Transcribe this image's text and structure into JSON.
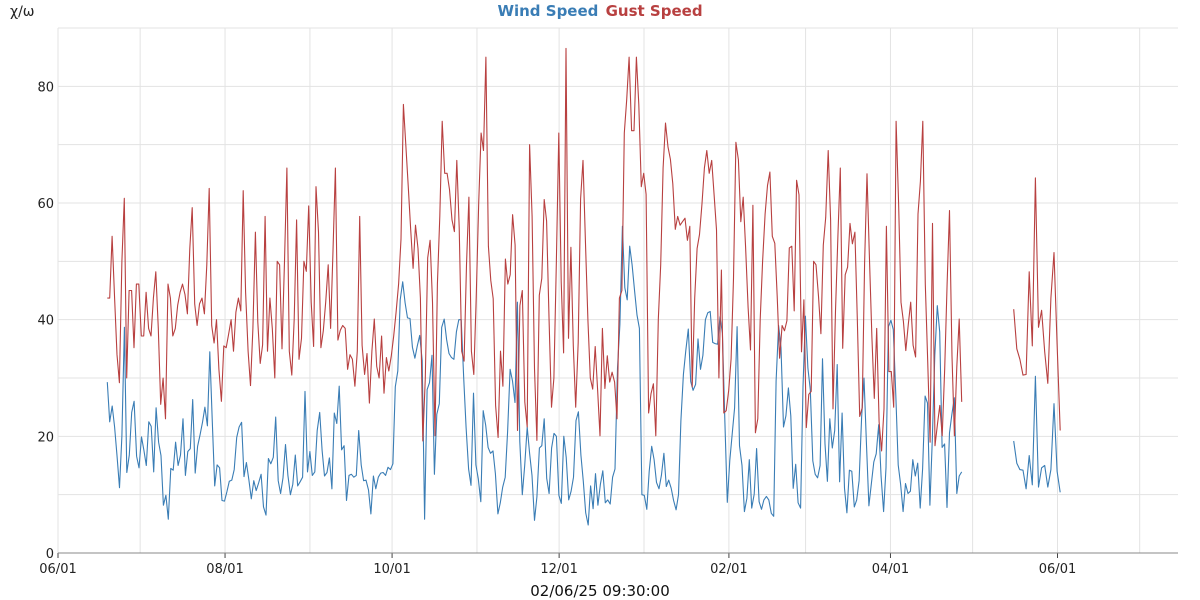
{
  "chart_data": {
    "type": "line",
    "title": "",
    "ylabel": "χ/ω",
    "xlabel": "02/06/25 09:30:00",
    "ylim": [
      0,
      90
    ],
    "y_ticks": [
      0,
      20,
      40,
      60,
      80
    ],
    "x_ticks": [
      "06/01",
      "08/01",
      "10/01",
      "12/01",
      "02/01",
      "04/01",
      "06/01"
    ],
    "x_tick_dates": [
      "2024-06-01",
      "2024-08-01",
      "2024-10-01",
      "2024-12-01",
      "2025-02-01",
      "2025-04-01",
      "2025-06-01"
    ],
    "x_range": [
      "2024-06-01",
      "2025-07-15"
    ],
    "grid": true,
    "legend_position": "top-center",
    "series": [
      {
        "name": "Wind Speed",
        "color": "#3a7db5",
        "segments": [
          {
            "start": "2024-06-19",
            "end": "2025-04-27",
            "values": [
              29.3,
              22.5,
              25.2,
              21.6,
              16.5,
              11.2,
              20.1,
              38.7,
              13.8,
              16.8,
              24.1,
              26.0,
              16.6,
              14.6,
              19.9,
              17.6,
              15.0,
              22.5,
              21.7,
              13.9,
              24.9,
              19.0,
              16.7,
              8.2,
              9.9,
              5.8,
              14.5,
              14.2,
              19.0,
              15.0,
              16.8,
              23.0,
              13.3,
              17.4,
              17.9,
              26.3,
              13.7,
              18.3,
              20.3,
              22.4,
              25.0,
              21.8,
              34.5,
              22.5,
              11.5,
              15.1,
              14.6,
              9.0,
              8.9,
              10.5,
              12.3,
              12.5,
              14.3,
              19.8,
              21.6,
              22.4,
              13.1,
              15.5,
              12.5,
              9.3,
              12.4,
              10.7,
              12.0,
              13.5,
              7.9,
              6.5,
              16.2,
              15.3,
              16.4,
              23.3,
              12.4,
              10.2,
              12.9,
              18.6,
              13.3,
              10.0,
              11.8,
              16.8,
              11.5,
              12.2,
              13.0,
              27.7,
              13.9,
              17.4,
              13.3,
              13.9,
              21.0,
              24.1,
              17.6,
              13.2,
              13.8,
              16.3,
              11.0,
              24.0,
              22.2,
              28.6,
              17.7,
              18.4,
              9.0,
              13.3,
              13.5,
              13.0,
              13.3,
              21.0,
              15.1,
              12.4,
              12.5,
              10.8,
              6.7,
              13.2,
              11.0,
              13.0,
              13.7,
              13.8,
              13.3,
              14.7,
              14.3,
              15.3,
              28.5,
              31.2,
              43.4,
              46.5,
              42.9,
              40.3,
              40.2,
              35.3,
              33.4,
              35.5,
              37.3,
              33.0,
              5.8,
              28.0,
              29.2,
              33.9,
              13.5,
              23.8,
              25.6,
              38.7,
              40.1,
              36.6,
              34.2,
              33.5,
              33.2,
              37.9,
              40.0,
              40.0,
              30.0,
              21.5,
              14.4,
              11.6,
              27.4,
              15.1,
              12.7,
              8.8,
              24.4,
              21.9,
              18.1,
              17.1,
              17.5,
              13.6,
              6.7,
              8.6,
              11.3,
              13.0,
              20.8,
              31.5,
              29.5,
              25.8,
              43.0,
              19.1,
              10.0,
              15.0,
              21.6,
              17.1,
              13.3,
              5.6,
              9.6,
              18.0,
              18.4,
              23.0,
              12.8,
              10.2,
              18.0,
              20.5,
              20.0,
              9.9,
              8.5,
              20.0,
              16.4,
              9.1,
              10.6,
              13.0,
              22.7,
              24.2,
              16.8,
              12.3,
              6.9,
              4.8,
              11.5,
              7.6,
              13.6,
              8.2,
              11.8,
              14.1,
              8.6,
              9.1,
              8.4,
              13.0,
              14.4,
              31.7,
              39.2,
              56.0,
              45.5,
              43.4,
              52.6,
              49.4,
              44.9,
              40.8,
              38.5,
              10.0,
              9.9,
              7.5,
              14.0,
              18.3,
              16.0,
              12.1,
              11.0,
              13.3,
              17.1,
              11.4,
              12.5,
              11.1,
              9.0,
              7.4,
              10.0,
              22.7,
              30.6,
              34.7,
              38.4,
              29.4,
              27.9,
              28.9,
              36.7,
              31.5,
              33.9,
              40.0,
              41.2,
              41.4,
              36.1,
              35.9,
              35.8,
              40.5,
              37.7,
              22.4,
              8.7,
              15.9,
              20.4,
              24.9,
              38.8,
              18.4,
              15.0,
              7.1,
              9.4,
              16.0,
              7.7,
              10.1,
              17.9,
              8.8,
              7.5,
              9.1,
              9.7,
              9.1,
              6.8,
              6.3,
              29.5,
              39.0,
              35.2,
              21.6,
              23.5,
              28.3,
              23.5,
              11.1,
              15.2,
              8.6,
              7.7,
              28.5,
              40.6,
              31.7,
              28.0,
              15.8,
              13.5,
              12.9,
              15.0,
              33.3,
              18.7,
              12.3,
              23.0,
              18.0,
              21.0,
              32.3,
              12.2,
              24.0,
              11.1,
              6.9,
              14.2,
              14.0,
              7.9,
              9.1,
              12.4,
              23.2,
              30.0,
              18.5,
              8.1,
              11.8,
              15.6,
              17.0,
              22.0,
              13.1,
              7.1,
              14.6,
              38.8,
              39.9,
              38.3,
              27.1,
              15.1,
              11.8,
              7.1,
              11.9,
              10.2,
              10.6,
              16.0,
              13.2,
              15.4,
              7.7,
              14.4,
              26.9,
              25.7,
              8.2,
              19.9,
              33.9,
              42.4,
              37.9,
              18.1,
              18.7,
              7.8,
              20.6,
              23.8,
              26.6,
              10.2,
              13.2,
              13.9
            ]
          },
          {
            "start": "2025-05-16",
            "end": "2025-06-02",
            "values": [
              19.2,
              15.4,
              14.3,
              14.2,
              11.0,
              16.7,
              11.7,
              30.3,
              11.3,
              14.6,
              15.0,
              11.3,
              14.3,
              25.6,
              14.0,
              10.4
            ]
          }
        ]
      },
      {
        "name": "Gust Speed",
        "color": "#b84040",
        "segments": [
          {
            "start": "2024-06-19",
            "end": "2025-04-27",
            "values": [
              43.7,
              43.7,
              54.3,
              43.7,
              34.0,
              29.2,
              50.0,
              60.8,
              30.0,
              45.0,
              45.0,
              35.2,
              46.1,
              46.1,
              37.2,
              37.2,
              44.7,
              38.5,
              37.2,
              43.7,
              48.2,
              38.5,
              25.5,
              30.0,
              23.0,
              46.1,
              43.7,
              37.2,
              38.5,
              42.5,
              44.7,
              46.1,
              44.3,
              41.0,
              52.2,
              59.2,
              42.7,
              39.0,
              42.7,
              43.7,
              41.0,
              49.4,
              62.5,
              39.0,
              36.0,
              40.0,
              31.5,
              26.0,
              35.5,
              35.2,
              37.6,
              40.0,
              34.6,
              41.3,
              43.7,
              41.5,
              62.1,
              44.7,
              34.6,
              28.7,
              38.5,
              55.0,
              39.6,
              32.5,
              35.7,
              57.7,
              34.6,
              43.7,
              38.5,
              30.0,
              50.0,
              49.4,
              35.0,
              50.0,
              66.0,
              34.6,
              30.5,
              40.1,
              57.1,
              33.2,
              36.8,
              50.0,
              48.3,
              59.5,
              43.0,
              35.4,
              62.8,
              55.0,
              35.2,
              38.1,
              43.0,
              49.4,
              38.5,
              51.8,
              66.0,
              36.5,
              38.2,
              39.0,
              38.5,
              31.5,
              34.0,
              33.2,
              28.6,
              34.6,
              57.7,
              35.6,
              30.6,
              34.2,
              25.7,
              34.6,
              40.1,
              32.0,
              30.0,
              37.2,
              27.4,
              33.5,
              31.2,
              33.8,
              37.2,
              41.3,
              46.1,
              53.8,
              76.9,
              70.0,
              62.7,
              55.4,
              48.8,
              56.2,
              52.2,
              43.7,
              19.2,
              30.0,
              50.6,
              53.6,
              43.0,
              20.1,
              46.1,
              57.7,
              74.0,
              65.1,
              65.1,
              62.3,
              57.1,
              55.1,
              67.3,
              55.8,
              34.6,
              32.9,
              49.4,
              61.0,
              34.6,
              30.6,
              43.7,
              60.0,
              72.0,
              69.0,
              85.0,
              52.6,
              46.7,
              43.6,
              25.3,
              19.8,
              34.6,
              28.6,
              50.4,
              46.1,
              47.7,
              58.0,
              52.8,
              21.0,
              42.4,
              45.0,
              25.9,
              21.6,
              70.0,
              57.7,
              31.6,
              19.3,
              44.2,
              47.1,
              60.6,
              56.9,
              40.4,
              25.0,
              30.0,
              49.4,
              72.0,
              46.5,
              34.3,
              86.5,
              36.8,
              52.4,
              35.5,
              25.0,
              36.1,
              60.7,
              67.3,
              53.0,
              40.0,
              30.0,
              28.1,
              35.4,
              28.0,
              20.1,
              38.5,
              28.2,
              33.8,
              29.3,
              31.0,
              29.3,
              23.0,
              43.7,
              45.0,
              72.0,
              77.7,
              85.0,
              72.4,
              72.4,
              85.0,
              76.9,
              62.8,
              65.1,
              61.5,
              24.0,
              27.3,
              29.0,
              20.1,
              40.0,
              49.4,
              66.0,
              73.7,
              69.6,
              67.5,
              63.3,
              55.5,
              57.7,
              56.2,
              56.8,
              57.4,
              53.6,
              56.0,
              28.5,
              43.7,
              52.2,
              54.6,
              59.9,
              66.0,
              69.0,
              65.1,
              67.3,
              61.4,
              55.4,
              30.0,
              48.5,
              24.0,
              24.4,
              27.9,
              33.3,
              47.1,
              70.4,
              67.4,
              56.8,
              61.0,
              52.4,
              42.1,
              34.8,
              59.6,
              20.6,
              23.0,
              40.0,
              50.0,
              58.1,
              63.0,
              65.3,
              54.3,
              53.1,
              44.0,
              33.4,
              39.0,
              38.1,
              39.8,
              52.3,
              52.6,
              41.5,
              63.9,
              61.4,
              34.5,
              43.4,
              21.5,
              27.2,
              27.7,
              50.0,
              49.4,
              44.0,
              37.6,
              52.8,
              57.5,
              69.0,
              57.1,
              24.7,
              41.5,
              54.3,
              66.0,
              35.1,
              47.7,
              49.0,
              56.5,
              53.0,
              55.0,
              40.2,
              23.4,
              24.9,
              49.7,
              65.0,
              50.8,
              37.0,
              26.5,
              38.5,
              22.5,
              17.5,
              24.7,
              56.0,
              31.1,
              31.1,
              25.0,
              74.0,
              60.0,
              43.0,
              39.7,
              34.7,
              39.2,
              43.0,
              35.6,
              33.6,
              58.1,
              63.7,
              74.0,
              46.1,
              32.9,
              19.0,
              56.5,
              18.4,
              22.0,
              25.3,
              20.1,
              31.6,
              46.1,
              58.7,
              33.7,
              20.1,
              31.9,
              40.1,
              25.9
            ]
          },
          {
            "start": "2025-05-16",
            "end": "2025-06-02",
            "values": [
              41.8,
              35.0,
              33.2,
              30.5,
              30.6,
              48.2,
              35.5,
              64.3,
              38.7,
              41.6,
              34.5,
              29.1,
              43.7,
              51.5,
              35.8,
              21.0
            ]
          }
        ]
      }
    ]
  }
}
